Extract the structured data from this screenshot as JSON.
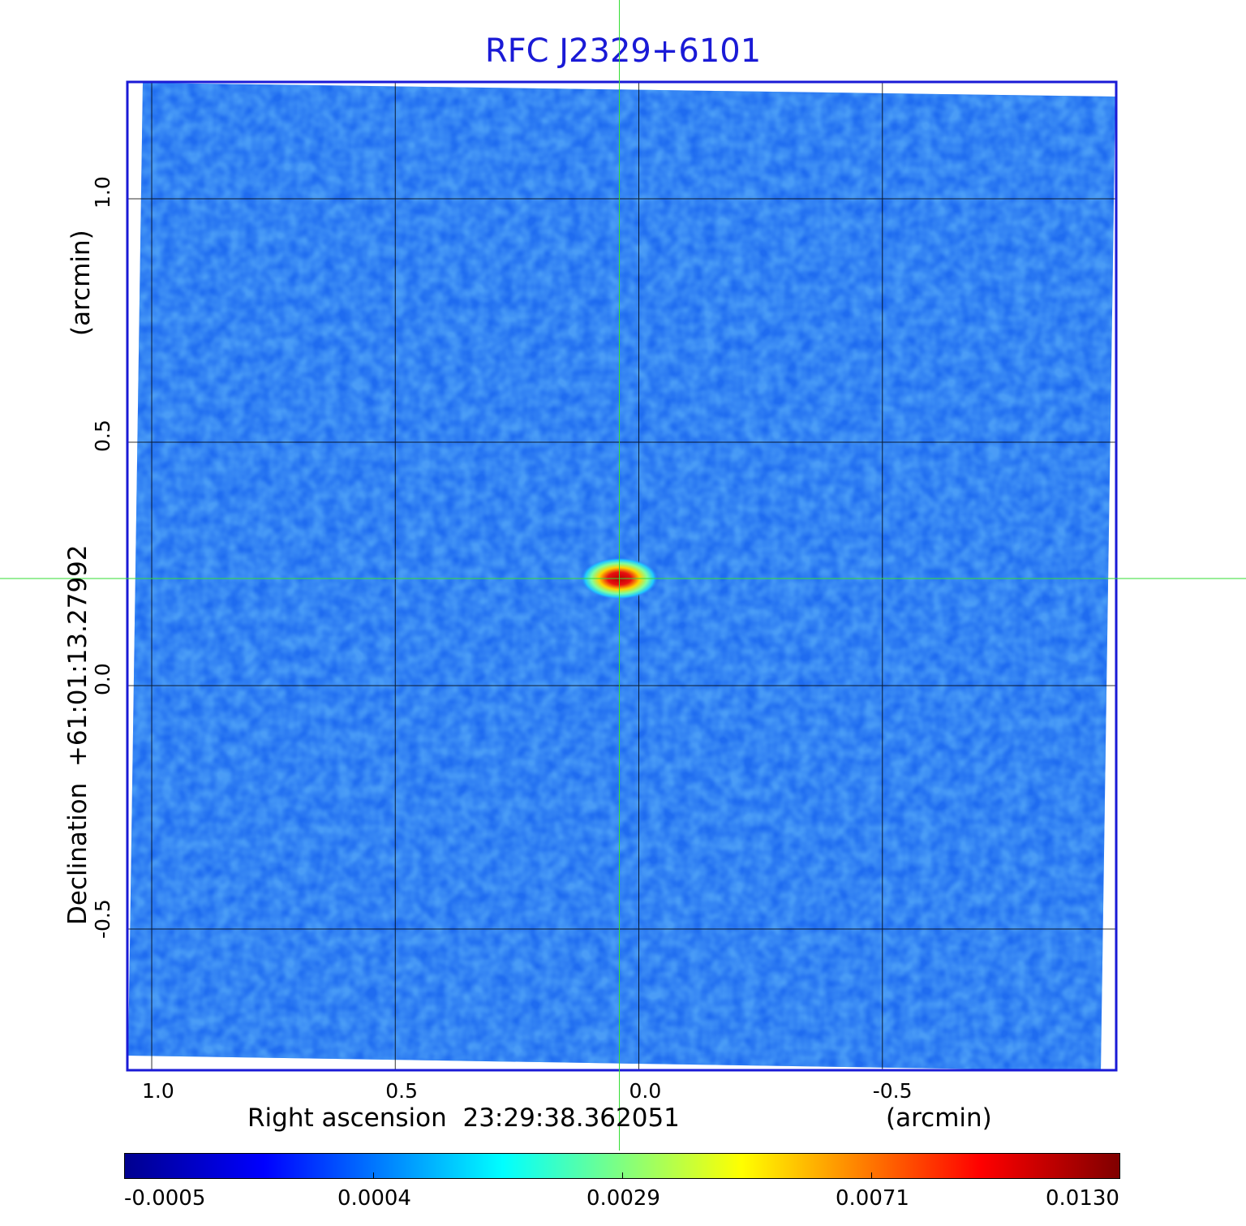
{
  "chart_data": {
    "type": "heatmap",
    "title": "RFC J2329+6101",
    "xlabel": "Right ascension  23:29:38.362051",
    "x_unit": "(arcmin)",
    "ylabel": "Declination  +61:01:13.27992",
    "y_unit": "(arcmin)",
    "x_ticks": [
      "1.0",
      "0.5",
      "0.0",
      "-0.5"
    ],
    "y_ticks": [
      "1.0",
      "0.5",
      "0.0",
      "-0.5"
    ],
    "xlim": [
      1.05,
      -0.98
    ],
    "ylim": [
      -0.79,
      1.24
    ],
    "grid": true,
    "crosshair": {
      "x": 0.04,
      "y": 0.22
    },
    "source_peak": {
      "x": 0.04,
      "y": 0.22,
      "value": 0.013
    },
    "colorbar": {
      "tick_labels": [
        "-0.0005",
        "0.0004",
        "0.0029",
        "0.0071",
        "0.0130"
      ],
      "colormap": "jet"
    },
    "colors": {
      "title": "#1a1ad6",
      "frame": "#1a1ad6",
      "crosshair": "#33dd33",
      "background_noise": "#1f6cf0"
    }
  }
}
